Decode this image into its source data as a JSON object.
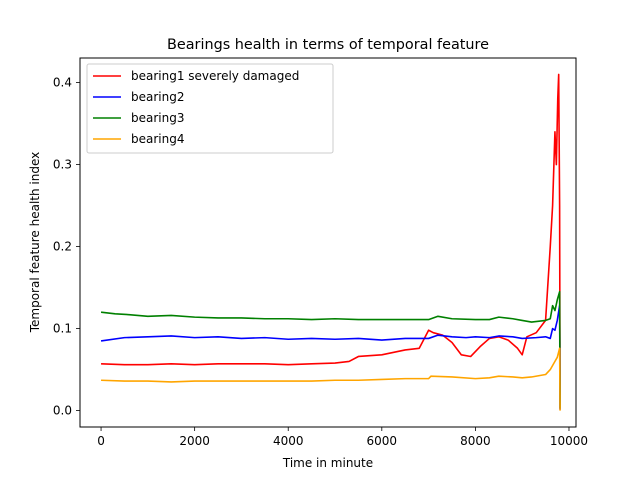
{
  "chart_data": {
    "type": "line",
    "title": "Bearings health in terms of temporal feature",
    "xlabel": "Time in minute",
    "ylabel": "Temporal feature health index",
    "xlim": [
      -450,
      10150
    ],
    "ylim": [
      -0.02,
      0.43
    ],
    "xticks": [
      0,
      2000,
      4000,
      6000,
      8000,
      10000
    ],
    "yticks": [
      0.0,
      0.1,
      0.2,
      0.3,
      0.4
    ],
    "xtick_labels": [
      "0",
      "2000",
      "4000",
      "6000",
      "8000",
      "10000"
    ],
    "ytick_labels": [
      "0.0",
      "0.1",
      "0.2",
      "0.3",
      "0.4"
    ],
    "grid": false,
    "legend_position": "top-left",
    "series": [
      {
        "name": "bearing1 severely damaged",
        "color": "#ff0000",
        "x": [
          0,
          500,
          1000,
          1500,
          2000,
          2500,
          3000,
          3500,
          4000,
          4500,
          5000,
          5300,
          5500,
          6000,
          6500,
          6800,
          7000,
          7100,
          7300,
          7500,
          7700,
          7900,
          8100,
          8300,
          8500,
          8700,
          8900,
          9000,
          9100,
          9300,
          9500,
          9600,
          9650,
          9700,
          9730,
          9760,
          9780,
          9800,
          9810
        ],
        "y": [
          0.057,
          0.056,
          0.056,
          0.057,
          0.056,
          0.057,
          0.057,
          0.057,
          0.056,
          0.057,
          0.058,
          0.06,
          0.066,
          0.068,
          0.074,
          0.076,
          0.098,
          0.095,
          0.092,
          0.083,
          0.068,
          0.066,
          0.078,
          0.088,
          0.09,
          0.086,
          0.076,
          0.068,
          0.09,
          0.095,
          0.11,
          0.2,
          0.25,
          0.34,
          0.3,
          0.38,
          0.41,
          0.25,
          0.002
        ]
      },
      {
        "name": "bearing2",
        "color": "#0000ff",
        "x": [
          0,
          500,
          1000,
          1500,
          2000,
          2500,
          3000,
          3500,
          4000,
          4500,
          5000,
          5500,
          6000,
          6500,
          7000,
          7200,
          7500,
          7800,
          8000,
          8300,
          8500,
          8800,
          9000,
          9300,
          9500,
          9600,
          9650,
          9700,
          9750,
          9800,
          9810
        ],
        "y": [
          0.085,
          0.089,
          0.09,
          0.091,
          0.089,
          0.09,
          0.088,
          0.089,
          0.087,
          0.088,
          0.087,
          0.088,
          0.086,
          0.088,
          0.088,
          0.092,
          0.09,
          0.089,
          0.09,
          0.089,
          0.091,
          0.09,
          0.088,
          0.089,
          0.09,
          0.088,
          0.1,
          0.098,
          0.11,
          0.128,
          0.001
        ]
      },
      {
        "name": "bearing3",
        "color": "#008000",
        "x": [
          0,
          300,
          600,
          1000,
          1500,
          2000,
          2500,
          3000,
          3500,
          4000,
          4500,
          5000,
          5500,
          6000,
          6500,
          7000,
          7200,
          7500,
          8000,
          8300,
          8500,
          8800,
          9000,
          9200,
          9500,
          9600,
          9650,
          9700,
          9750,
          9800,
          9810
        ],
        "y": [
          0.12,
          0.118,
          0.117,
          0.115,
          0.116,
          0.114,
          0.113,
          0.113,
          0.112,
          0.112,
          0.111,
          0.112,
          0.111,
          0.111,
          0.111,
          0.111,
          0.115,
          0.112,
          0.111,
          0.111,
          0.114,
          0.112,
          0.11,
          0.108,
          0.11,
          0.112,
          0.128,
          0.122,
          0.135,
          0.145,
          0.003
        ]
      },
      {
        "name": "bearing4",
        "color": "#ffa500",
        "x": [
          0,
          500,
          1000,
          1500,
          2000,
          2500,
          3000,
          3500,
          4000,
          4500,
          5000,
          5500,
          6000,
          6500,
          7000,
          7050,
          7500,
          8000,
          8300,
          8500,
          8800,
          9000,
          9200,
          9500,
          9600,
          9650,
          9700,
          9750,
          9800,
          9810
        ],
        "y": [
          0.037,
          0.036,
          0.036,
          0.035,
          0.036,
          0.036,
          0.036,
          0.036,
          0.036,
          0.036,
          0.037,
          0.037,
          0.038,
          0.039,
          0.039,
          0.042,
          0.041,
          0.039,
          0.04,
          0.042,
          0.041,
          0.04,
          0.041,
          0.044,
          0.05,
          0.055,
          0.06,
          0.065,
          0.076,
          0.0
        ]
      }
    ]
  }
}
